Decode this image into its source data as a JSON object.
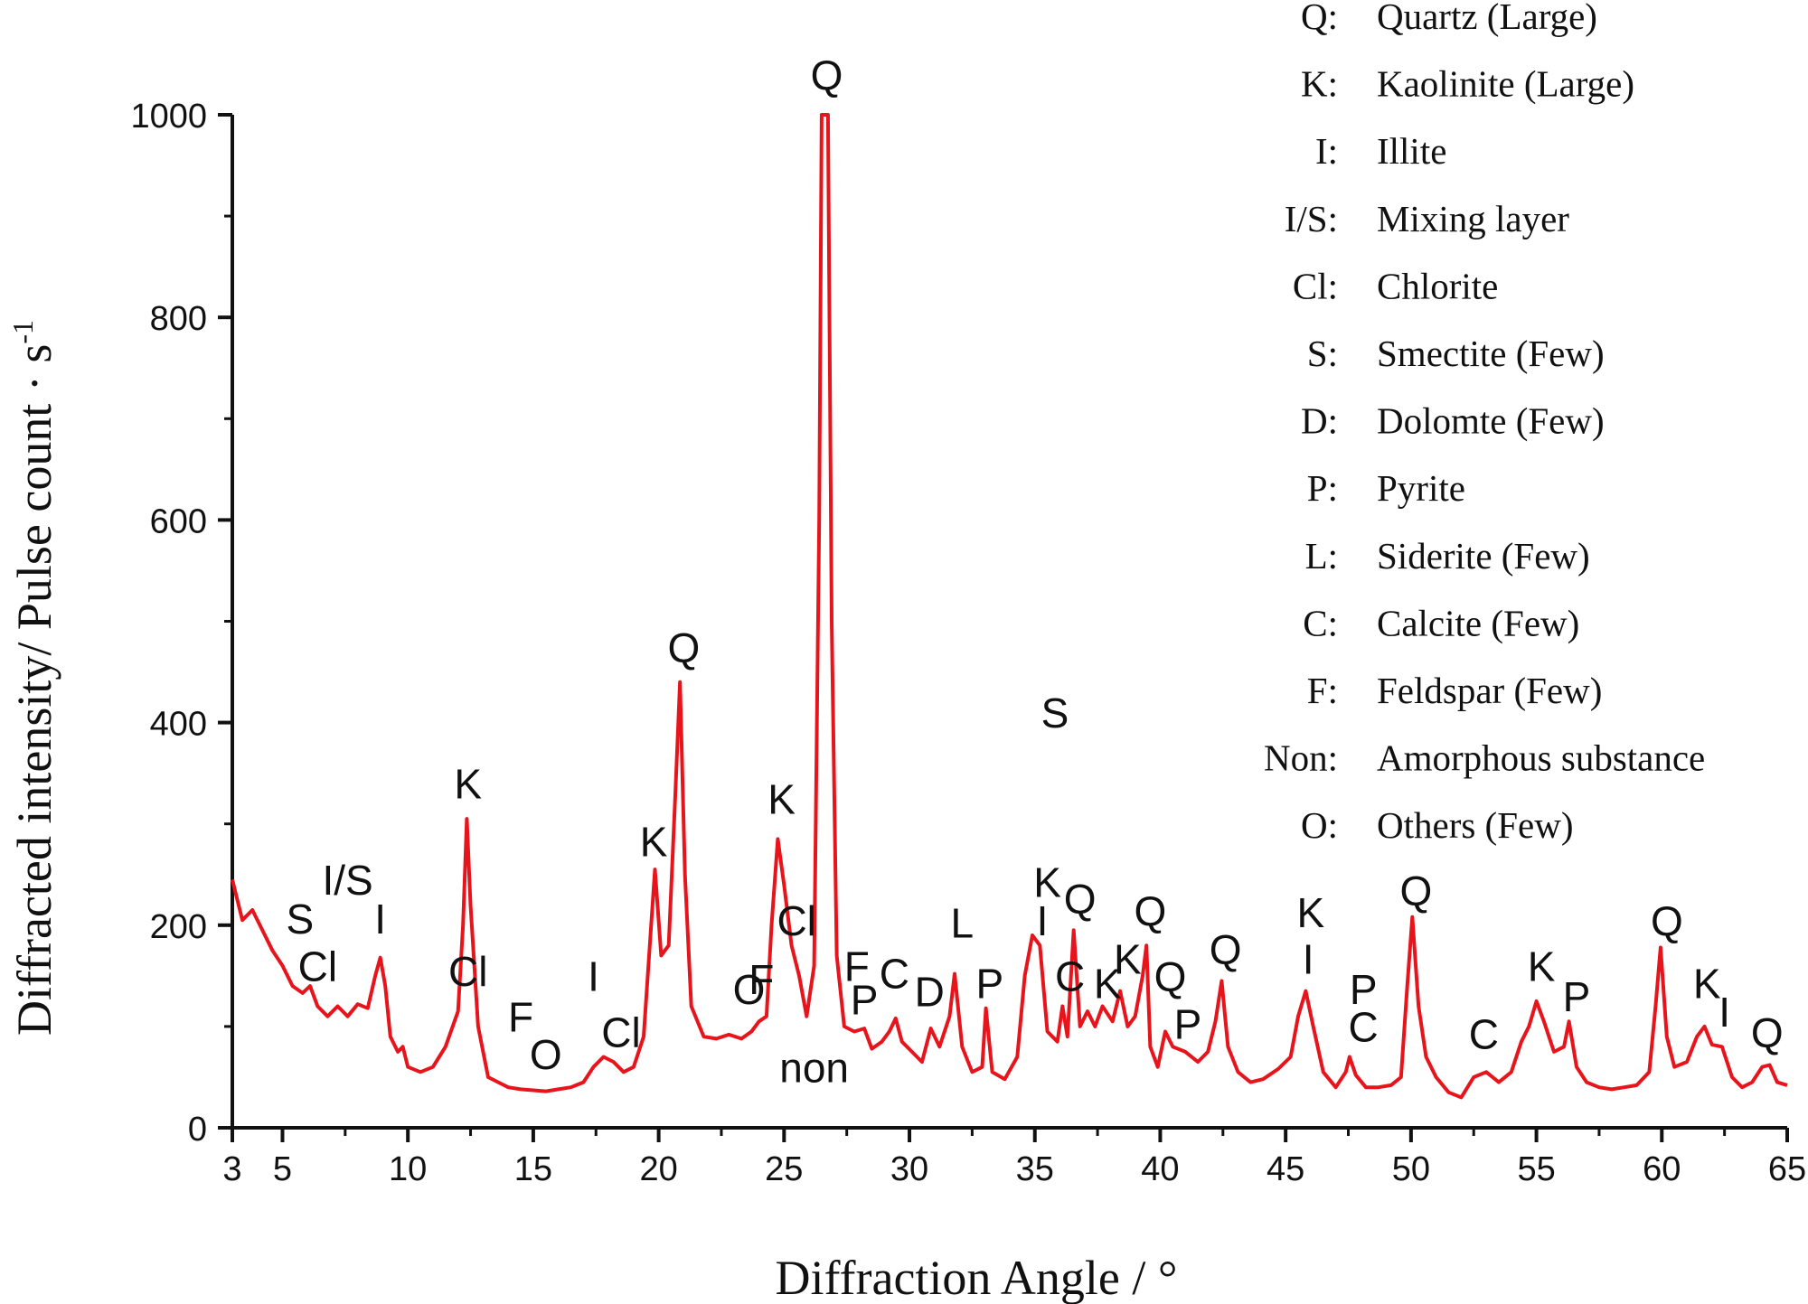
{
  "chart_data": {
    "type": "line",
    "xlabel": "Diffraction Angle / °",
    "ylabel_main": "Diffracted intensity/ Pulse count · s",
    "ylabel_sup": "-1",
    "xlim": [
      3,
      65
    ],
    "ylim": [
      0,
      1000
    ],
    "x_ticks": [
      3,
      5,
      10,
      15,
      20,
      25,
      30,
      35,
      40,
      45,
      50,
      55,
      60,
      65
    ],
    "y_ticks": [
      0,
      200,
      400,
      600,
      800,
      1000
    ],
    "series": [
      {
        "name": "XRD pattern",
        "color": "#e8141c",
        "points": [
          [
            3,
            245
          ],
          [
            3.4,
            205
          ],
          [
            3.8,
            215
          ],
          [
            4.2,
            195
          ],
          [
            4.6,
            175
          ],
          [
            5,
            160
          ],
          [
            5.4,
            140
          ],
          [
            5.8,
            133
          ],
          [
            6.1,
            140
          ],
          [
            6.4,
            120
          ],
          [
            6.8,
            110
          ],
          [
            7.2,
            120
          ],
          [
            7.6,
            110
          ],
          [
            8,
            122
          ],
          [
            8.4,
            118
          ],
          [
            8.7,
            150
          ],
          [
            8.9,
            168
          ],
          [
            9.1,
            140
          ],
          [
            9.3,
            90
          ],
          [
            9.6,
            75
          ],
          [
            9.8,
            80
          ],
          [
            10,
            60
          ],
          [
            10.5,
            55
          ],
          [
            11,
            60
          ],
          [
            11.5,
            80
          ],
          [
            12,
            115
          ],
          [
            12.2,
            200
          ],
          [
            12.35,
            305
          ],
          [
            12.5,
            220
          ],
          [
            12.8,
            100
          ],
          [
            13.2,
            50
          ],
          [
            13.6,
            45
          ],
          [
            14,
            40
          ],
          [
            14.5,
            38
          ],
          [
            15,
            37
          ],
          [
            15.5,
            36
          ],
          [
            16,
            38
          ],
          [
            16.5,
            40
          ],
          [
            17,
            45
          ],
          [
            17.4,
            60
          ],
          [
            17.8,
            70
          ],
          [
            18.2,
            65
          ],
          [
            18.6,
            55
          ],
          [
            19,
            60
          ],
          [
            19.4,
            90
          ],
          [
            19.7,
            200
          ],
          [
            19.85,
            255
          ],
          [
            20.1,
            170
          ],
          [
            20.4,
            180
          ],
          [
            20.65,
            320
          ],
          [
            20.85,
            440
          ],
          [
            21.05,
            250
          ],
          [
            21.3,
            120
          ],
          [
            21.8,
            90
          ],
          [
            22.3,
            88
          ],
          [
            22.8,
            92
          ],
          [
            23.3,
            88
          ],
          [
            23.7,
            95
          ],
          [
            24,
            105
          ],
          [
            24.3,
            110
          ],
          [
            24.5,
            200
          ],
          [
            24.75,
            285
          ],
          [
            25,
            240
          ],
          [
            25.3,
            180
          ],
          [
            25.6,
            150
          ],
          [
            25.9,
            110
          ],
          [
            26.2,
            160
          ],
          [
            26.4,
            600
          ],
          [
            26.5,
            1000
          ],
          [
            26.6,
            1000
          ],
          [
            26.75,
            1000
          ],
          [
            26.9,
            500
          ],
          [
            27.1,
            170
          ],
          [
            27.4,
            100
          ],
          [
            27.8,
            95
          ],
          [
            28.2,
            98
          ],
          [
            28.5,
            78
          ],
          [
            28.9,
            85
          ],
          [
            29.2,
            95
          ],
          [
            29.45,
            108
          ],
          [
            29.7,
            85
          ],
          [
            30.1,
            75
          ],
          [
            30.5,
            65
          ],
          [
            30.85,
            98
          ],
          [
            31.2,
            80
          ],
          [
            31.6,
            110
          ],
          [
            31.8,
            152
          ],
          [
            32.1,
            80
          ],
          [
            32.5,
            55
          ],
          [
            32.9,
            60
          ],
          [
            33.05,
            118
          ],
          [
            33.3,
            55
          ],
          [
            33.8,
            48
          ],
          [
            34.3,
            70
          ],
          [
            34.6,
            150
          ],
          [
            34.9,
            190
          ],
          [
            35.2,
            180
          ],
          [
            35.5,
            95
          ],
          [
            35.9,
            85
          ],
          [
            36.1,
            120
          ],
          [
            36.3,
            90
          ],
          [
            36.55,
            195
          ],
          [
            36.8,
            100
          ],
          [
            37.1,
            115
          ],
          [
            37.4,
            100
          ],
          [
            37.7,
            120
          ],
          [
            38.1,
            105
          ],
          [
            38.4,
            135
          ],
          [
            38.7,
            100
          ],
          [
            39,
            110
          ],
          [
            39.3,
            150
          ],
          [
            39.45,
            180
          ],
          [
            39.6,
            80
          ],
          [
            39.9,
            60
          ],
          [
            40.2,
            95
          ],
          [
            40.5,
            80
          ],
          [
            41,
            75
          ],
          [
            41.5,
            65
          ],
          [
            41.9,
            75
          ],
          [
            42.2,
            105
          ],
          [
            42.45,
            145
          ],
          [
            42.7,
            80
          ],
          [
            43.1,
            55
          ],
          [
            43.6,
            45
          ],
          [
            44.1,
            48
          ],
          [
            44.7,
            58
          ],
          [
            45.2,
            70
          ],
          [
            45.5,
            110
          ],
          [
            45.8,
            135
          ],
          [
            46.1,
            100
          ],
          [
            46.5,
            55
          ],
          [
            47,
            40
          ],
          [
            47.4,
            55
          ],
          [
            47.55,
            70
          ],
          [
            47.8,
            52
          ],
          [
            48.2,
            40
          ],
          [
            48.7,
            40
          ],
          [
            49.2,
            42
          ],
          [
            49.6,
            50
          ],
          [
            49.85,
            140
          ],
          [
            50.05,
            208
          ],
          [
            50.3,
            120
          ],
          [
            50.6,
            70
          ],
          [
            51,
            50
          ],
          [
            51.5,
            35
          ],
          [
            52,
            30
          ],
          [
            52.5,
            50
          ],
          [
            53,
            55
          ],
          [
            53.5,
            45
          ],
          [
            54,
            55
          ],
          [
            54.4,
            85
          ],
          [
            54.7,
            100
          ],
          [
            55,
            125
          ],
          [
            55.3,
            105
          ],
          [
            55.7,
            75
          ],
          [
            56.1,
            80
          ],
          [
            56.3,
            105
          ],
          [
            56.6,
            60
          ],
          [
            57,
            45
          ],
          [
            57.5,
            40
          ],
          [
            58,
            38
          ],
          [
            58.5,
            40
          ],
          [
            59,
            42
          ],
          [
            59.5,
            55
          ],
          [
            59.75,
            120
          ],
          [
            59.95,
            178
          ],
          [
            60.2,
            90
          ],
          [
            60.5,
            60
          ],
          [
            61,
            65
          ],
          [
            61.4,
            90
          ],
          [
            61.7,
            100
          ],
          [
            62,
            82
          ],
          [
            62.4,
            80
          ],
          [
            62.8,
            50
          ],
          [
            63.2,
            40
          ],
          [
            63.6,
            45
          ],
          [
            64,
            60
          ],
          [
            64.3,
            62
          ],
          [
            64.6,
            45
          ],
          [
            65,
            42
          ]
        ]
      }
    ],
    "peak_labels": [
      {
        "text": "S",
        "x": 5.7,
        "y": 192
      },
      {
        "text": "I/S",
        "x": 7.6,
        "y": 230
      },
      {
        "text": "I",
        "x": 8.9,
        "y": 192
      },
      {
        "text": "Cl",
        "x": 6.4,
        "y": 145
      },
      {
        "text": "K",
        "x": 12.4,
        "y": 325
      },
      {
        "text": "Cl",
        "x": 12.4,
        "y": 140
      },
      {
        "text": "F",
        "x": 14.5,
        "y": 95
      },
      {
        "text": "O",
        "x": 15.5,
        "y": 58
      },
      {
        "text": "I",
        "x": 17.4,
        "y": 135
      },
      {
        "text": "Cl",
        "x": 18.5,
        "y": 80
      },
      {
        "text": "K",
        "x": 19.8,
        "y": 268
      },
      {
        "text": "Q",
        "x": 21,
        "y": 460
      },
      {
        "text": "O",
        "x": 23.6,
        "y": 122
      },
      {
        "text": "F",
        "x": 24.1,
        "y": 132
      },
      {
        "text": "K",
        "x": 24.9,
        "y": 310
      },
      {
        "text": "Cl",
        "x": 25.5,
        "y": 190
      },
      {
        "text": "Q",
        "x": 26.7,
        "y": 1025
      },
      {
        "text": "non",
        "x": 26.2,
        "y": 45
      },
      {
        "text": "F",
        "x": 27.9,
        "y": 145
      },
      {
        "text": "P",
        "x": 28.2,
        "y": 112
      },
      {
        "text": "C",
        "x": 29.4,
        "y": 138
      },
      {
        "text": "D",
        "x": 30.8,
        "y": 120
      },
      {
        "text": "L",
        "x": 32.1,
        "y": 188
      },
      {
        "text": "P",
        "x": 33.2,
        "y": 128
      },
      {
        "text": "S",
        "x": 35.8,
        "y": 395
      },
      {
        "text": "K",
        "x": 35.5,
        "y": 228
      },
      {
        "text": "Q",
        "x": 36.8,
        "y": 212
      },
      {
        "text": "I",
        "x": 35.3,
        "y": 190
      },
      {
        "text": "C",
        "x": 36.4,
        "y": 135
      },
      {
        "text": "K",
        "x": 37.9,
        "y": 128
      },
      {
        "text": "K",
        "x": 38.7,
        "y": 152
      },
      {
        "text": "Q",
        "x": 39.6,
        "y": 200
      },
      {
        "text": "Q",
        "x": 40.4,
        "y": 135
      },
      {
        "text": "P",
        "x": 41.1,
        "y": 88
      },
      {
        "text": "Q",
        "x": 42.6,
        "y": 162
      },
      {
        "text": "K",
        "x": 46,
        "y": 198
      },
      {
        "text": "I",
        "x": 45.9,
        "y": 152
      },
      {
        "text": "P",
        "x": 48.1,
        "y": 122
      },
      {
        "text": "C",
        "x": 48.1,
        "y": 85
      },
      {
        "text": "Q",
        "x": 50.2,
        "y": 220
      },
      {
        "text": "C",
        "x": 52.9,
        "y": 78
      },
      {
        "text": "K",
        "x": 55.2,
        "y": 145
      },
      {
        "text": "P",
        "x": 56.6,
        "y": 115
      },
      {
        "text": "Q",
        "x": 60.2,
        "y": 190
      },
      {
        "text": "K",
        "x": 61.8,
        "y": 128
      },
      {
        "text": "I",
        "x": 62.5,
        "y": 100
      },
      {
        "text": "Q",
        "x": 64.2,
        "y": 80
      }
    ],
    "legend": [
      {
        "code": "Q:",
        "label": "Quartz (Large)"
      },
      {
        "code": "K:",
        "label": "Kaolinite (Large)"
      },
      {
        "code": "I:",
        "label": "Illite"
      },
      {
        "code": "I/S:",
        "label": "Mixing layer"
      },
      {
        "code": "Cl:",
        "label": "Chlorite"
      },
      {
        "code": "S:",
        "label": "Smectite (Few)"
      },
      {
        "code": "D:",
        "label": "Dolomte (Few)"
      },
      {
        "code": "P:",
        "label": "Pyrite"
      },
      {
        "code": "L:",
        "label": "Siderite (Few)"
      },
      {
        "code": "C:",
        "label": "Calcite (Few)"
      },
      {
        "code": "F:",
        "label": "Feldspar (Few)"
      },
      {
        "code": "Non:",
        "label": "Amorphous substance"
      },
      {
        "code": "O:",
        "label": "Others (Few)"
      }
    ],
    "legend_position": "top-right"
  }
}
